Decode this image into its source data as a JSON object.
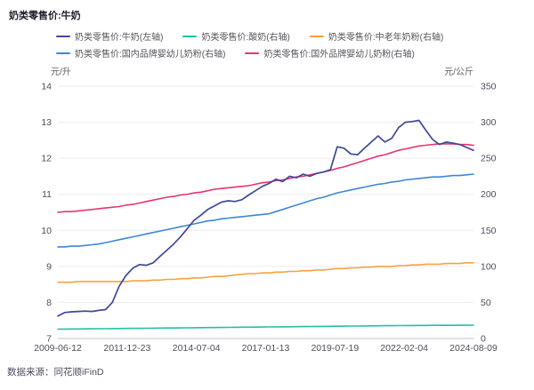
{
  "title": "奶类零售价:牛奶",
  "footer": {
    "source": "数据来源：同花顺iFinD"
  },
  "axes": {
    "left_unit": "元/升",
    "right_unit": "元/公斤",
    "left_ticks": [
      7,
      8,
      9,
      10,
      11,
      12,
      13,
      14
    ],
    "right_ticks": [
      0,
      50,
      100,
      150,
      200,
      250,
      300,
      350
    ],
    "x_tick_labels": [
      "2009-06-12",
      "2011-12-23",
      "2014-07-04",
      "2017-01-13",
      "2019-07-19",
      "2022-02-04",
      "2024-08-09"
    ]
  },
  "colors": {
    "grid": "#ebebf3",
    "axis_line": "#c6c6d0",
    "title_text": "#1d1d28",
    "tick_text": "#4e4e5c"
  },
  "chart_data": {
    "type": "line",
    "title": "奶类零售价:牛奶",
    "x_range": [
      "2009-06-12",
      "2024-08-09"
    ],
    "left_axis": {
      "unit": "元/升",
      "range": [
        7,
        14
      ]
    },
    "right_axis": {
      "unit": "元/公斤",
      "range": [
        0,
        350
      ]
    },
    "grid": true,
    "legend_position": "top",
    "legend_rows": [
      3,
      2
    ],
    "series": [
      {
        "name": "奶类零售价:牛奶(左轴)",
        "axis": "left",
        "color": "#3d4a99",
        "values": [
          7.62,
          7.72,
          7.74,
          7.75,
          7.76,
          7.75,
          7.78,
          7.8,
          8.0,
          8.45,
          8.75,
          8.95,
          9.05,
          9.03,
          9.1,
          9.28,
          9.45,
          9.62,
          9.82,
          10.05,
          10.28,
          10.42,
          10.58,
          10.68,
          10.78,
          10.82,
          10.8,
          10.85,
          10.98,
          11.1,
          11.22,
          11.3,
          11.42,
          11.35,
          11.5,
          11.46,
          11.56,
          11.5,
          11.58,
          11.62,
          11.68,
          12.32,
          12.28,
          12.12,
          12.1,
          12.28,
          12.45,
          12.62,
          12.45,
          12.55,
          12.85,
          13.0,
          13.02,
          13.05,
          12.78,
          12.52,
          12.38,
          12.45,
          12.42,
          12.38,
          12.3,
          12.22
        ]
      },
      {
        "name": "奶类零售价:酸奶(右轴)",
        "axis": "right",
        "color": "#29bda6",
        "values": [
          13,
          13.1,
          13.2,
          13.2,
          13.3,
          13.4,
          13.5,
          13.6,
          13.7,
          13.8,
          13.9,
          14,
          14.1,
          14.2,
          14.3,
          14.4,
          14.5,
          14.6,
          14.7,
          14.8,
          14.9,
          15,
          15.1,
          15.2,
          15.3,
          15.4,
          15.5,
          15.6,
          15.7,
          15.8,
          15.9,
          16,
          16.1,
          16.2,
          16.3,
          16.4,
          16.5,
          16.6,
          16.7,
          16.8,
          16.9,
          17,
          17.1,
          17.2,
          17.3,
          17.4,
          17.5,
          17.6,
          17.7,
          17.8,
          17.9,
          18,
          18,
          18.1,
          18.1,
          18.2,
          18.2,
          18.3,
          18.3,
          18.4,
          18.4,
          18.5
        ]
      },
      {
        "name": "奶类零售价:中老年奶粉(右轴)",
        "axis": "right",
        "color": "#f7a23f",
        "values": [
          78,
          78,
          78,
          79,
          79,
          79,
          79,
          79,
          79,
          79,
          79,
          80,
          80,
          80,
          81,
          81,
          82,
          82,
          83,
          83,
          84,
          84,
          85,
          86,
          86,
          87,
          88,
          89,
          90,
          90,
          91,
          91,
          92,
          92,
          93,
          93,
          94,
          94,
          95,
          95,
          96,
          97,
          97,
          98,
          98,
          99,
          99,
          100,
          100,
          100,
          101,
          101,
          102,
          102,
          103,
          103,
          103,
          104,
          104,
          104,
          105,
          105
        ]
      },
      {
        "name": "奶类零售价:国内品牌婴幼儿奶粉(右轴)",
        "axis": "right",
        "color": "#3d87d9",
        "values": [
          127,
          127,
          128,
          128,
          129,
          130,
          131,
          133,
          135,
          137,
          139,
          141,
          143,
          145,
          147,
          149,
          151,
          153,
          155,
          157,
          159,
          161,
          163,
          164,
          166,
          167,
          168,
          169,
          170,
          171,
          172,
          173,
          176,
          179,
          182,
          185,
          188,
          191,
          194,
          196,
          199,
          202,
          204,
          206,
          208,
          210,
          212,
          214,
          215,
          217,
          218,
          220,
          221,
          222,
          223,
          224,
          224,
          225,
          226,
          226,
          227,
          228
        ]
      },
      {
        "name": "奶类零售价:国外品牌婴幼儿奶粉(右轴)",
        "axis": "right",
        "color": "#e93372",
        "values": [
          175,
          176,
          176,
          177,
          178,
          179,
          180,
          181,
          182,
          183,
          185,
          186,
          188,
          190,
          192,
          194,
          196,
          197,
          199,
          200,
          202,
          203,
          205,
          207,
          208,
          209,
          210,
          211,
          212,
          214,
          216,
          217,
          219,
          220,
          222,
          224,
          225,
          227,
          229,
          231,
          233,
          236,
          238,
          241,
          244,
          247,
          250,
          253,
          255,
          258,
          261,
          263,
          265,
          267,
          268,
          269,
          270,
          270,
          270,
          269,
          269,
          268
        ]
      }
    ]
  }
}
